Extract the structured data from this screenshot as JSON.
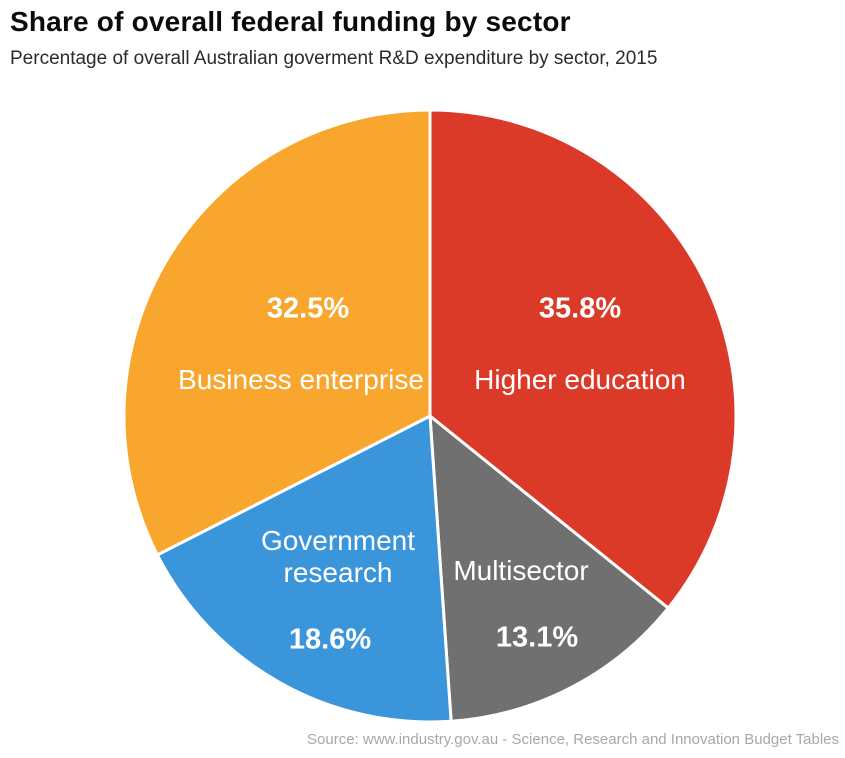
{
  "header": {
    "title": "Share of overall federal funding by sector",
    "subtitle": "Percentage of overall Australian goverment R&D expenditure by sector, 2015"
  },
  "footer": {
    "source": "Source: www.industry.gov.au - Science, Research and Innovation Budget Tables"
  },
  "chart_data": {
    "type": "pie",
    "title": "Share of overall federal funding by sector",
    "subtitle": "Percentage of overall Australian goverment R&D expenditure by sector, 2015",
    "source": "Source: www.industry.gov.au - Science, Research and Innovation Budget Tables",
    "unit": "%",
    "start_angle_deg": 0,
    "direction": "clockwise",
    "legend": "none",
    "separator_color": "#ffffff",
    "slices": [
      {
        "label": "Higher education",
        "value": 35.8,
        "display": "35.8%",
        "color": "#da3a27"
      },
      {
        "label": "Multisector",
        "value": 13.1,
        "display": "13.1%",
        "color": "#707070"
      },
      {
        "label": "Government research",
        "value": 18.6,
        "display": "18.6%",
        "color": "#3b95db"
      },
      {
        "label": "Business enterprise",
        "value": 32.5,
        "display": "32.5%",
        "color": "#f8a62e"
      }
    ]
  }
}
